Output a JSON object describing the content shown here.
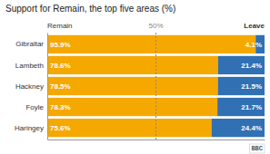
{
  "chart_data": {
    "type": "bar",
    "orientation": "horizontal",
    "stacked": true,
    "title": "Support for Remain, the top five areas (%)",
    "categories": [
      "Gibraltar",
      "Lambeth",
      "Hackney",
      "Foyle",
      "Haringey"
    ],
    "series": [
      {
        "name": "Remain",
        "color": "#F5A800",
        "values": [
          95.9,
          78.6,
          78.5,
          78.3,
          75.6
        ],
        "value_labels": [
          "95.9%",
          "78.6%",
          "78.5%",
          "78.3%",
          "75.6%"
        ]
      },
      {
        "name": "Leave",
        "color": "#3070B3",
        "values": [
          4.1,
          21.4,
          21.5,
          21.7,
          24.4
        ],
        "value_labels": [
          "4.1%",
          "21.4%",
          "21.5%",
          "21.7%",
          "24.4%"
        ]
      }
    ],
    "xlim": [
      0,
      100
    ],
    "data_labels": true,
    "tick_labels": "y",
    "grid": false,
    "annotations": [
      {
        "text": "50%",
        "x": 50
      },
      {
        "text": "BBC"
      }
    ]
  }
}
